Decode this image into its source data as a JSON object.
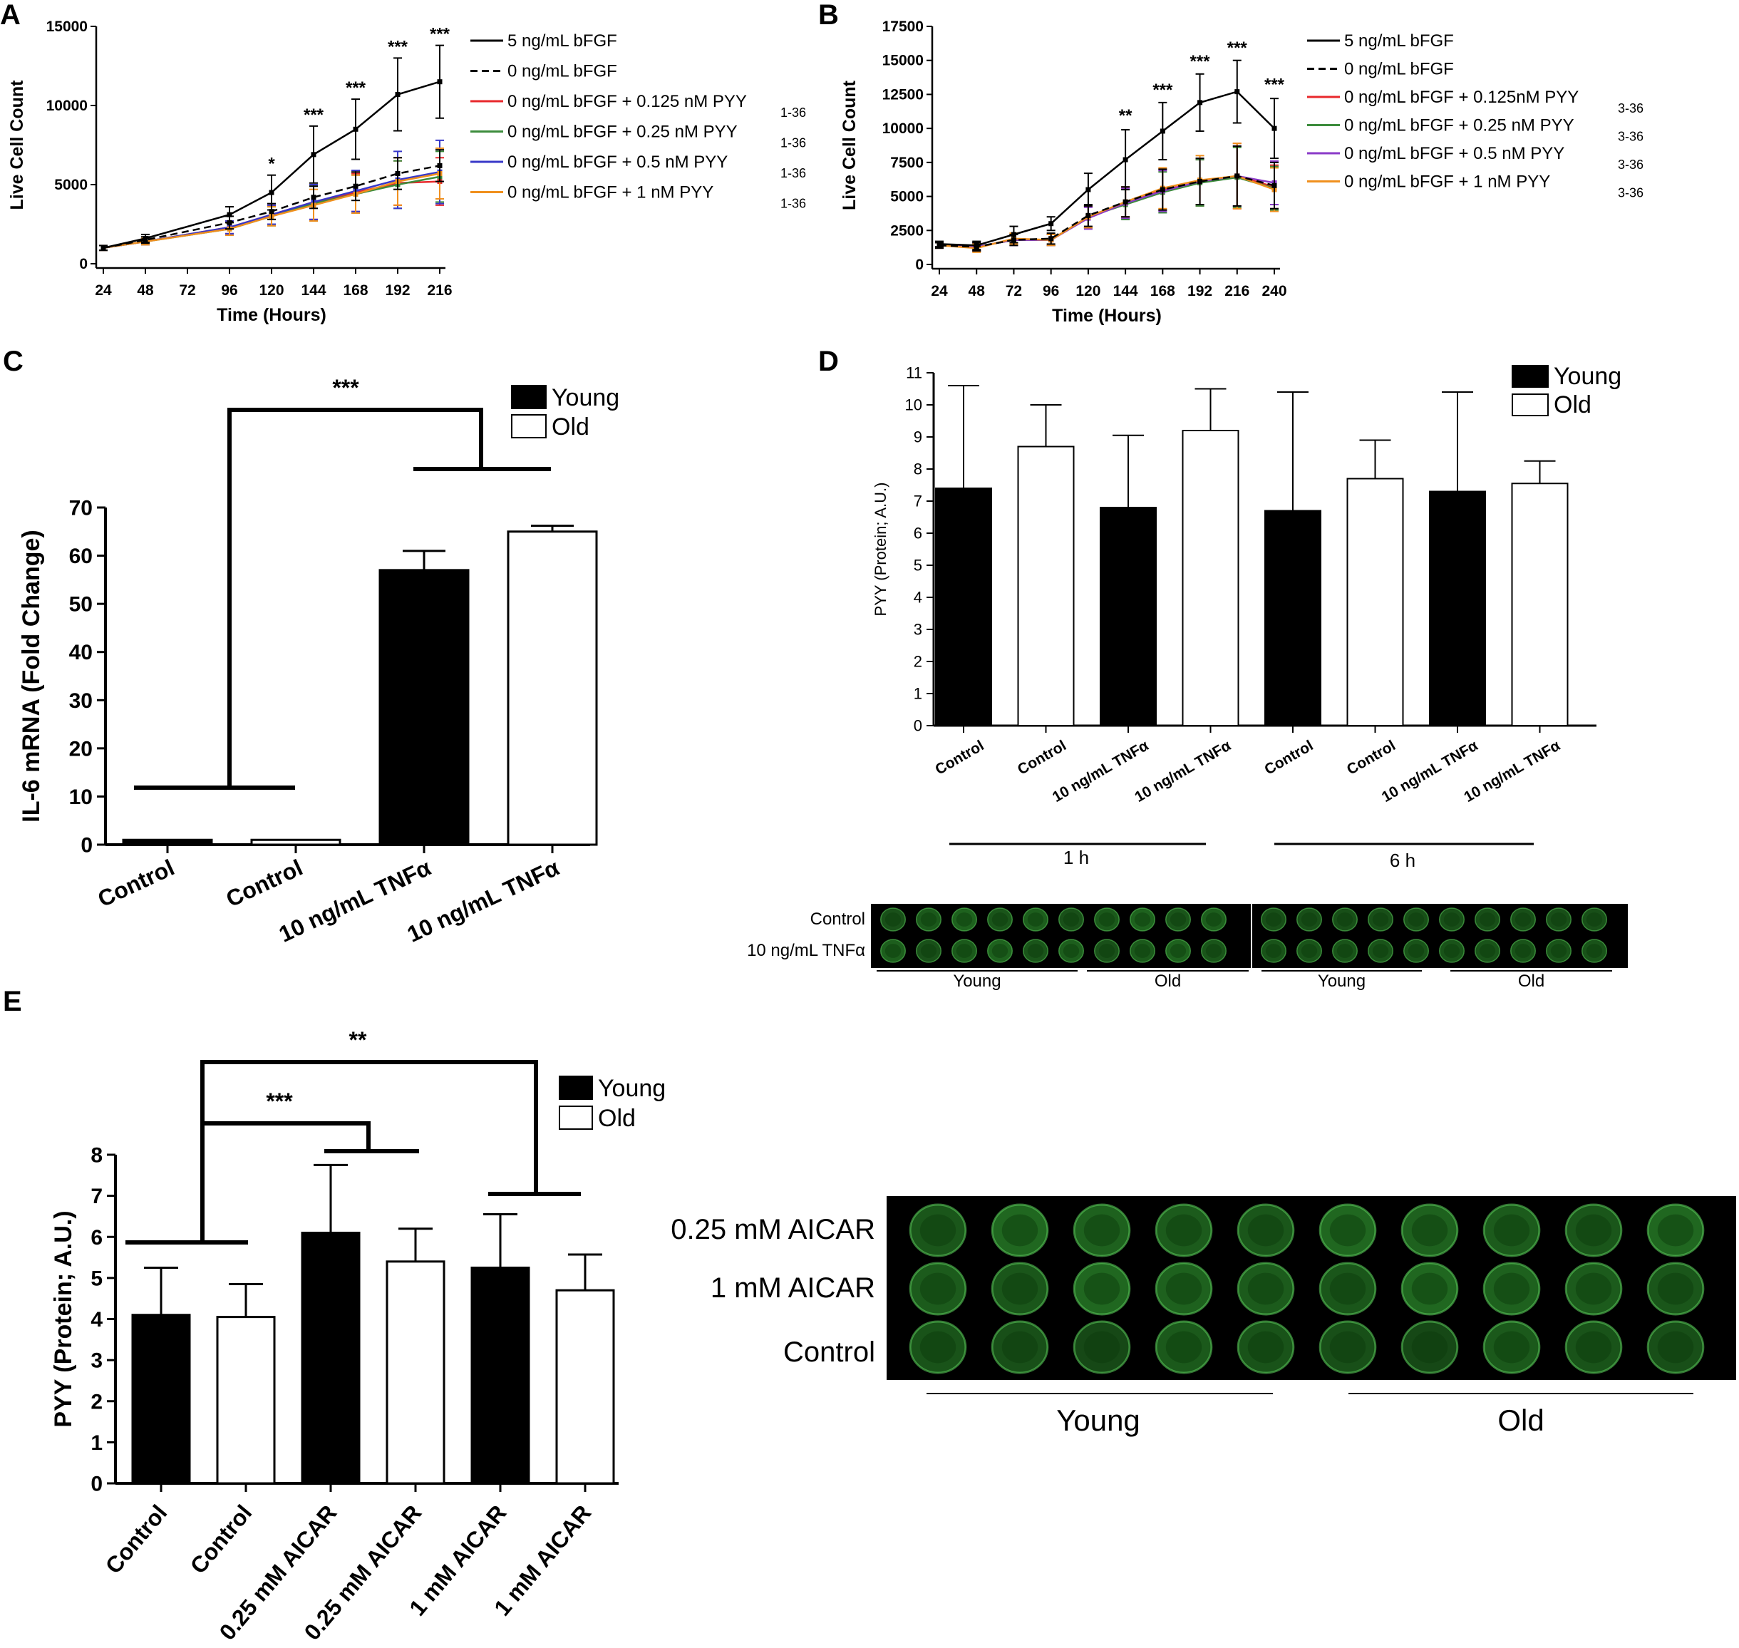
{
  "panels": {
    "A": "A",
    "B": "B",
    "C": "C",
    "D": "D",
    "E": "E"
  },
  "chart_data": [
    {
      "id": "A",
      "type": "line",
      "xlabel": "Time (Hours)",
      "ylabel": "Live Cell Count",
      "xlim": [
        24,
        216
      ],
      "ylim": [
        0,
        15000
      ],
      "x_ticks": [
        24,
        48,
        72,
        96,
        120,
        144,
        168,
        192,
        216
      ],
      "y_ticks": [
        0,
        5000,
        10000,
        15000
      ],
      "legend_position": "right",
      "series": [
        {
          "name": "5 ng/mL bFGF",
          "legend_sub": "",
          "color": "#000000",
          "dash": false,
          "x": [
            24,
            48,
            96,
            120,
            144,
            168,
            192,
            216
          ],
          "y": [
            1000,
            1600,
            3100,
            4500,
            6900,
            8500,
            10700,
            11500
          ],
          "err": [
            150,
            250,
            500,
            1100,
            1800,
            1900,
            2300,
            2300
          ]
        },
        {
          "name": "0 ng/mL bFGF",
          "legend_sub": "",
          "color": "#000000",
          "dash": true,
          "x": [
            24,
            48,
            96,
            120,
            144,
            168,
            192,
            216
          ],
          "y": [
            1000,
            1500,
            2600,
            3300,
            4200,
            4900,
            5700,
            6200
          ],
          "err": [
            150,
            200,
            400,
            500,
            700,
            900,
            1000,
            1000
          ]
        },
        {
          "name": "0 ng/mL bFGF + 0.125 nM PYY",
          "legend_sub": "1-36",
          "color": "#e8282c",
          "dash": false,
          "x": [
            24,
            48,
            96,
            120,
            144,
            168,
            192,
            216
          ],
          "y": [
            1000,
            1400,
            2300,
            3100,
            3900,
            4500,
            5100,
            5200
          ],
          "err": [
            150,
            200,
            400,
            600,
            1100,
            1200,
            1400,
            1500
          ]
        },
        {
          "name": "0 ng/mL bFGF + 0.25 nM PYY",
          "legend_sub": "1-36",
          "color": "#3c8c3c",
          "dash": false,
          "x": [
            24,
            48,
            96,
            120,
            144,
            168,
            192,
            216
          ],
          "y": [
            1000,
            1400,
            2200,
            3000,
            3800,
            4400,
            5000,
            5500
          ],
          "err": [
            150,
            200,
            400,
            600,
            1100,
            1200,
            1500,
            1600
          ]
        },
        {
          "name": "0 ng/mL bFGF + 0.5 nM PYY",
          "legend_sub": "1-36",
          "color": "#3838c8",
          "dash": false,
          "x": [
            24,
            48,
            96,
            120,
            144,
            168,
            192,
            216
          ],
          "y": [
            1000,
            1400,
            2300,
            3100,
            3900,
            4600,
            5300,
            5800
          ],
          "err": [
            150,
            200,
            400,
            600,
            1100,
            1300,
            1800,
            2000
          ]
        },
        {
          "name": "0 ng/mL bFGF + 1 nM PYY",
          "legend_sub": "1-36",
          "color": "#f0901e",
          "dash": false,
          "x": [
            24,
            48,
            96,
            120,
            144,
            168,
            192,
            216
          ],
          "y": [
            1000,
            1400,
            2200,
            3000,
            3700,
            4400,
            5200,
            5700
          ],
          "err": [
            150,
            200,
            400,
            600,
            1000,
            1200,
            1500,
            1600
          ]
        }
      ],
      "annotations": [
        {
          "x": 120,
          "y": 5600,
          "text": "*"
        },
        {
          "x": 144,
          "y": 8700,
          "text": "***"
        },
        {
          "x": 168,
          "y": 10400,
          "text": "***"
        },
        {
          "x": 192,
          "y": 13000,
          "text": "***"
        },
        {
          "x": 216,
          "y": 13800,
          "text": "***"
        }
      ]
    },
    {
      "id": "B",
      "type": "line",
      "xlabel": "Time (Hours)",
      "ylabel": "Live Cell   Count",
      "xlim": [
        24,
        240
      ],
      "ylim": [
        0,
        17500
      ],
      "x_ticks": [
        24,
        48,
        72,
        96,
        120,
        144,
        168,
        192,
        216,
        240
      ],
      "y_ticks": [
        0,
        2500,
        5000,
        7500,
        10000,
        12500,
        15000,
        17500
      ],
      "legend_position": "right",
      "series": [
        {
          "name": "5 ng/mL bFGF",
          "legend_sub": "",
          "color": "#000000",
          "dash": false,
          "x": [
            24,
            48,
            72,
            96,
            120,
            144,
            168,
            192,
            216,
            240
          ],
          "y": [
            1500,
            1400,
            2200,
            3000,
            5500,
            7700,
            9800,
            11900,
            12700,
            10000
          ],
          "err": [
            200,
            300,
            600,
            500,
            1200,
            2200,
            2100,
            2100,
            2300,
            2200
          ]
        },
        {
          "name": "0 ng/mL bFGF",
          "legend_sub": "",
          "color": "#000000",
          "dash": true,
          "x": [
            24,
            48,
            72,
            96,
            120,
            144,
            168,
            192,
            216,
            240
          ],
          "y": [
            1400,
            1300,
            1800,
            1900,
            3600,
            4600,
            5500,
            6100,
            6500,
            5800
          ],
          "err": [
            200,
            300,
            400,
            400,
            800,
            1100,
            1500,
            1700,
            2200,
            1700
          ]
        },
        {
          "name": "0 ng/mL bFGF + 0.125nM PYY",
          "legend_sub": "3-36",
          "color": "#e8282c",
          "dash": false,
          "x": [
            24,
            48,
            72,
            96,
            120,
            144,
            168,
            192,
            216,
            240
          ],
          "y": [
            1400,
            1300,
            1800,
            1800,
            3500,
            4500,
            5500,
            6000,
            6500,
            5700
          ],
          "err": [
            200,
            300,
            400,
            400,
            800,
            1100,
            1500,
            1700,
            2400,
            1600
          ]
        },
        {
          "name": "0 ng/mL bFGF + 0.25 nM PYY",
          "legend_sub": "3-36",
          "color": "#3c8c3c",
          "dash": false,
          "x": [
            24,
            48,
            72,
            96,
            120,
            144,
            168,
            192,
            216,
            240
          ],
          "y": [
            1400,
            1300,
            1800,
            1800,
            3500,
            4400,
            5300,
            6000,
            6400,
            5600
          ],
          "err": [
            200,
            300,
            400,
            400,
            800,
            1100,
            1500,
            1700,
            2200,
            1600
          ]
        },
        {
          "name": "0 ng/mL bFGF + 0.5 nM PYY",
          "legend_sub": "3-36",
          "color": "#8a3ac8",
          "dash": false,
          "x": [
            24,
            48,
            72,
            96,
            120,
            144,
            168,
            192,
            216,
            240
          ],
          "y": [
            1400,
            1300,
            1800,
            1800,
            3400,
            4500,
            5400,
            6100,
            6500,
            6000
          ],
          "err": [
            200,
            300,
            400,
            400,
            800,
            1100,
            1500,
            1700,
            2200,
            1600
          ]
        },
        {
          "name": "0 ng/mL bFGF + 1 nM PYY",
          "legend_sub": "3-36",
          "color": "#f0901e",
          "dash": false,
          "x": [
            24,
            48,
            72,
            96,
            120,
            144,
            168,
            192,
            216,
            240
          ],
          "y": [
            1400,
            1200,
            1900,
            1800,
            3500,
            4600,
            5600,
            6200,
            6500,
            5500
          ],
          "err": [
            200,
            300,
            400,
            400,
            800,
            1100,
            1500,
            1800,
            2400,
            1600
          ]
        }
      ],
      "annotations": [
        {
          "x": 144,
          "y": 10100,
          "text": "**"
        },
        {
          "x": 168,
          "y": 12000,
          "text": "***"
        },
        {
          "x": 192,
          "y": 14100,
          "text": "***"
        },
        {
          "x": 216,
          "y": 15100,
          "text": "***"
        },
        {
          "x": 240,
          "y": 12400,
          "text": "***"
        }
      ]
    },
    {
      "id": "C",
      "type": "bar",
      "ylabel": "IL-6 mRNA (Fold Change)",
      "ylim": [
        0,
        70
      ],
      "y_ticks": [
        0,
        10,
        20,
        30,
        40,
        50,
        60,
        70
      ],
      "categories": [
        "Control",
        "Control",
        "10 ng/mL TNFα",
        "10 ng/mL TNFα"
      ],
      "groups": [
        "Young",
        "Old",
        "Young",
        "Old"
      ],
      "values": [
        1,
        1,
        57,
        65
      ],
      "errors": [
        0,
        0,
        4,
        1.2
      ],
      "legend": [
        "Young",
        "Old"
      ],
      "legend_position": "top-right",
      "significance": "***"
    },
    {
      "id": "D",
      "type": "bar",
      "ylabel": "PYY (Protein; A.U.)",
      "ylim": [
        0,
        11
      ],
      "y_ticks": [
        0,
        1,
        2,
        3,
        4,
        5,
        6,
        7,
        8,
        9,
        10,
        11
      ],
      "categories": [
        "Control",
        "Control",
        "10 ng/mL TNFα",
        "10 ng/mL TNFα",
        "Control",
        "Control",
        "10 ng/mL TNFα",
        "10 ng/mL TNFα"
      ],
      "groups": [
        "Young",
        "Old",
        "Young",
        "Old",
        "Young",
        "Old",
        "Young",
        "Old"
      ],
      "values": [
        7.4,
        8.7,
        6.8,
        9.2,
        6.7,
        7.7,
        7.3,
        7.55
      ],
      "errors": [
        3.2,
        1.3,
        2.25,
        1.3,
        3.7,
        1.2,
        3.1,
        0.7
      ],
      "time_groups": [
        "1 h",
        "6 h"
      ],
      "legend": [
        "Young",
        "Old"
      ],
      "legend_position": "top-right"
    },
    {
      "id": "E",
      "type": "bar",
      "ylabel": "PYY (Protein; A.U.)",
      "ylim": [
        0,
        8
      ],
      "y_ticks": [
        0,
        1,
        2,
        3,
        4,
        5,
        6,
        7,
        8
      ],
      "categories": [
        "Control",
        "Control",
        "0.25 mM AICAR",
        "0.25 mM AICAR",
        "1 mM AICAR",
        "1 mM AICAR"
      ],
      "groups": [
        "Young",
        "Old",
        "Young",
        "Old",
        "Young",
        "Old"
      ],
      "values": [
        4.1,
        4.05,
        6.1,
        5.4,
        5.25,
        4.7
      ],
      "errors": [
        1.15,
        0.8,
        1.65,
        0.8,
        1.3,
        0.87
      ],
      "legend": [
        "Young",
        "Old"
      ],
      "legend_position": "top-right",
      "significance": [
        "***",
        "**"
      ]
    }
  ],
  "blot_D": {
    "rows": [
      "Control",
      "10 ng/mL TNFα"
    ],
    "groups": [
      "Young",
      "Old",
      "Young",
      "Old"
    ]
  },
  "blot_E": {
    "rows": [
      "0.25 mM AICAR",
      "1 mM AICAR",
      "Control"
    ],
    "groups": [
      "Young",
      "Old"
    ]
  },
  "colors": {
    "young_bar": "#000000",
    "old_bar": "#ffffff",
    "well_green": "#2f9a2f",
    "blot_background": "#000000"
  }
}
